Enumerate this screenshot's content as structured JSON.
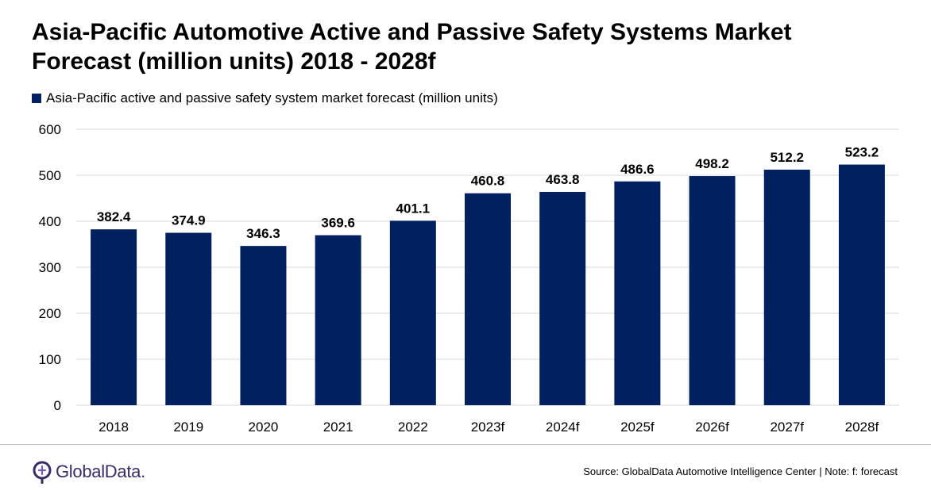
{
  "chart_data": {
    "type": "bar",
    "title_lines": [
      "Asia-Pacific Automotive Active and Passive Safety Systems Market",
      "Forecast (million units) 2018 - 2028f"
    ],
    "legend": [
      "Asia-Pacific active and passive safety system market forecast (million units)"
    ],
    "categories": [
      "2018",
      "2019",
      "2020",
      "2021",
      "2022",
      "2023f",
      "2024f",
      "2025f",
      "2026f",
      "2027f",
      "2028f"
    ],
    "series": [
      {
        "name": "Asia-Pacific active and passive safety system market forecast (million units)",
        "values": [
          382.4,
          374.9,
          346.3,
          369.6,
          401.1,
          460.8,
          463.8,
          486.6,
          498.2,
          512.2,
          523.2
        ]
      }
    ],
    "data_labels": [
      "382.4",
      "374.9",
      "346.3",
      "369.6",
      "401.1",
      "460.8",
      "463.8",
      "486.6",
      "498.2",
      "512.2",
      "523.2"
    ],
    "ylim": [
      0,
      600
    ],
    "yticks": [
      0,
      100,
      200,
      300,
      400,
      500,
      600
    ],
    "grid": true,
    "bar_color": "#002060",
    "grid_color": "#d9d9d9"
  },
  "footer": {
    "logo_text": "GlobalData.",
    "source": "Source: GlobalData Automotive Intelligence Center | Note: f: forecast",
    "logo_color": "#3b2b63"
  }
}
